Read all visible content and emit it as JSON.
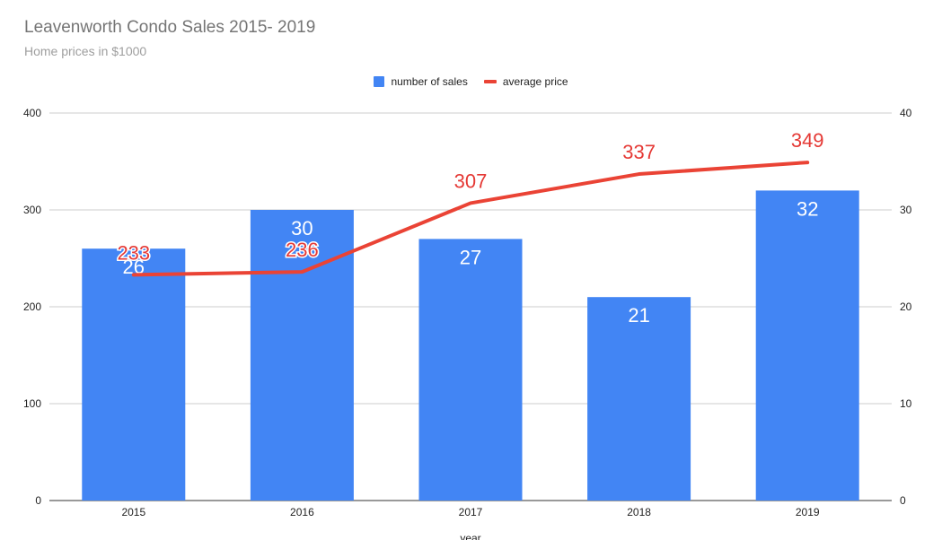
{
  "chart_data": {
    "type": "bar",
    "title": "Leavenworth Condo Sales 2015- 2019",
    "subtitle": "Home prices in $1000",
    "xlabel": "year",
    "categories": [
      "2015",
      "2016",
      "2017",
      "2018",
      "2019"
    ],
    "left_axis": {
      "ticks": [
        "0",
        "100",
        "200",
        "300",
        "400"
      ],
      "ylim": [
        0,
        400
      ]
    },
    "right_axis": {
      "ticks": [
        "0",
        "10",
        "20",
        "30",
        "40"
      ],
      "ylim": [
        0,
        40
      ]
    },
    "series": [
      {
        "name": "number of sales",
        "type": "bar",
        "axis": "right",
        "color": "#4285f4",
        "values": [
          26,
          30,
          27,
          21,
          32
        ]
      },
      {
        "name": "average price",
        "type": "line",
        "axis": "left",
        "color": "#ea4335",
        "values": [
          233,
          236,
          307,
          337,
          349
        ]
      }
    ],
    "grid": true,
    "legend_position": "top"
  }
}
